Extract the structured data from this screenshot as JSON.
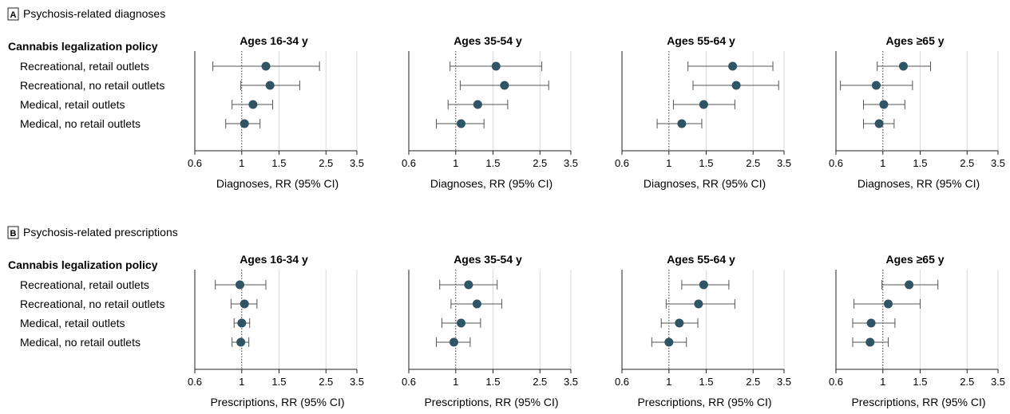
{
  "figure": {
    "panels": [
      {
        "badge": "A",
        "title": "Psychosis-related diagnoses",
        "policy_header": "Cannabis legalization policy",
        "rows": [
          "Recreational, retail outlets",
          "Recreational, no retail outlets",
          "Medical, retail outlets",
          "Medical, no retail outlets"
        ],
        "xlabel": "Diagnoses, RR (95% CI)"
      },
      {
        "badge": "B",
        "title": "Psychosis-related prescriptions",
        "policy_header": "Cannabis legalization policy",
        "rows": [
          "Recreational, retail outlets",
          "Recreational, no retail outlets",
          "Medical, retail outlets",
          "Medical, no retail outlets"
        ],
        "xlabel": "Prescriptions, RR (95% CI)"
      }
    ],
    "age_groups": [
      "Ages 16-34 y",
      "Ages 35-54 y",
      "Ages 55-64 y",
      "Ages ≥65 y"
    ],
    "x_ticks": [
      0.6,
      1,
      1.5,
      2.5,
      3.5
    ],
    "x_tick_labels": [
      "0.6",
      "1",
      "1.5",
      "2.5",
      "3.5"
    ]
  },
  "colors": {
    "point": "#2e5466",
    "whisker": "#555555",
    "axis": "#222222",
    "grid": "#d9d9d9",
    "reference_line": "#333333"
  },
  "chart_data": [
    {
      "type": "forest",
      "panel": "A",
      "x_scale": "log",
      "xlim": [
        0.6,
        3.5
      ],
      "reference_value": 1,
      "categories": [
        "Recreational, retail outlets",
        "Recreational, no retail outlets",
        "Medical, retail outlets",
        "Medical, no retail outlets"
      ],
      "series": [
        {
          "name": "Ages 16-34 y",
          "estimate": [
            1.3,
            1.36,
            1.13,
            1.03
          ],
          "lower": [
            0.73,
            0.99,
            0.9,
            0.84
          ],
          "upper": [
            2.33,
            1.88,
            1.4,
            1.22
          ]
        },
        {
          "name": "Ages 35-54 y",
          "estimate": [
            1.55,
            1.7,
            1.27,
            1.06
          ],
          "lower": [
            0.94,
            1.05,
            0.92,
            0.81
          ],
          "upper": [
            2.55,
            2.75,
            1.76,
            1.36
          ]
        },
        {
          "name": "Ages 55-64 y",
          "estimate": [
            2.0,
            2.08,
            1.46,
            1.15
          ],
          "lower": [
            1.23,
            1.3,
            1.05,
            0.88
          ],
          "upper": [
            3.1,
            3.3,
            2.05,
            1.43
          ]
        },
        {
          "name": "Ages ≥65 y",
          "estimate": [
            1.25,
            0.93,
            1.01,
            0.96
          ],
          "lower": [
            0.94,
            0.63,
            0.81,
            0.81
          ],
          "upper": [
            1.68,
            1.38,
            1.27,
            1.13
          ]
        }
      ]
    },
    {
      "type": "forest",
      "panel": "B",
      "x_scale": "log",
      "xlim": [
        0.6,
        3.5
      ],
      "reference_value": 1,
      "categories": [
        "Recreational, retail outlets",
        "Recreational, no retail outlets",
        "Medical, retail outlets",
        "Medical, no retail outlets"
      ],
      "series": [
        {
          "name": "Ages 16-34 y",
          "estimate": [
            0.98,
            1.03,
            1.0,
            0.99
          ],
          "lower": [
            0.75,
            0.89,
            0.92,
            0.9
          ],
          "upper": [
            1.3,
            1.18,
            1.09,
            1.08
          ]
        },
        {
          "name": "Ages 35-54 y",
          "estimate": [
            1.15,
            1.26,
            1.06,
            0.98
          ],
          "lower": [
            0.84,
            0.95,
            0.86,
            0.81
          ],
          "upper": [
            1.57,
            1.65,
            1.31,
            1.17
          ]
        },
        {
          "name": "Ages 55-64 y",
          "estimate": [
            1.46,
            1.38,
            1.12,
            1.0
          ],
          "lower": [
            1.15,
            0.97,
            0.92,
            0.83
          ],
          "upper": [
            1.92,
            2.05,
            1.37,
            1.21
          ]
        },
        {
          "name": "Ages ≥65 y",
          "estimate": [
            1.33,
            1.06,
            0.88,
            0.87
          ],
          "lower": [
            0.99,
            0.73,
            0.72,
            0.72
          ],
          "upper": [
            1.82,
            1.5,
            1.14,
            1.06
          ]
        }
      ]
    }
  ]
}
